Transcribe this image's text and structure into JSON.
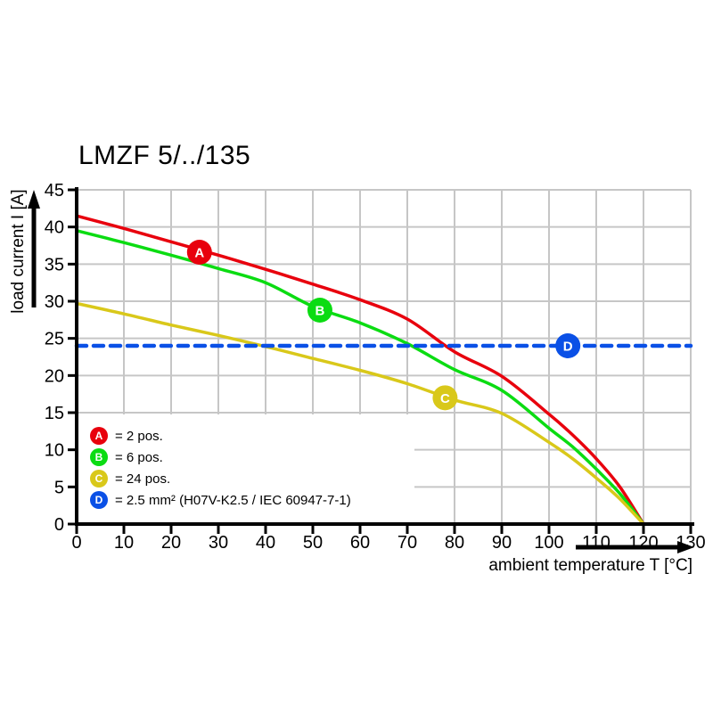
{
  "title": "LMZF 5/../135",
  "colors": {
    "red": "#e8000d",
    "green": "#0bdc12",
    "yellow": "#d9c81a",
    "blue": "#0a50e6",
    "grid": "#c6c6c6",
    "axis": "#000000",
    "background": "#ffffff",
    "marker_letter": "#ffffff"
  },
  "chart_data": {
    "type": "line",
    "title": "LMZF 5/../135",
    "xlabel": "ambient temperature T [°C]",
    "ylabel": "load current I [A]",
    "xlim": [
      0,
      130
    ],
    "ylim": [
      0,
      45
    ],
    "x_ticks": [
      0,
      10,
      20,
      30,
      40,
      50,
      60,
      70,
      80,
      90,
      100,
      110,
      120,
      130
    ],
    "y_ticks": [
      0,
      5,
      10,
      15,
      20,
      25,
      30,
      35,
      40,
      45
    ],
    "grid": true,
    "legend_position": "inside bottom-left",
    "series": [
      {
        "id": "A",
        "label": "= 2 pos.",
        "color": "#e8000d",
        "style": "solid",
        "marker_at": [
          26,
          36.6
        ],
        "points": [
          [
            0,
            41.5
          ],
          [
            10,
            39.8
          ],
          [
            20,
            38.0
          ],
          [
            30,
            36.2
          ],
          [
            40,
            34.3
          ],
          [
            50,
            32.3
          ],
          [
            60,
            30.2
          ],
          [
            70,
            27.6
          ],
          [
            80,
            23.2
          ],
          [
            90,
            19.9
          ],
          [
            100,
            14.8
          ],
          [
            105,
            12.0
          ],
          [
            110,
            8.8
          ],
          [
            115,
            5.0
          ],
          [
            120,
            0
          ]
        ]
      },
      {
        "id": "B",
        "label": "= 6 pos.",
        "color": "#0bdc12",
        "style": "solid",
        "marker_at": [
          51.5,
          28.8
        ],
        "points": [
          [
            0,
            39.5
          ],
          [
            10,
            37.9
          ],
          [
            20,
            36.2
          ],
          [
            30,
            34.4
          ],
          [
            40,
            32.5
          ],
          [
            50,
            29.3
          ],
          [
            60,
            27.1
          ],
          [
            70,
            24.3
          ],
          [
            80,
            20.8
          ],
          [
            90,
            18.0
          ],
          [
            100,
            12.9
          ],
          [
            105,
            10.4
          ],
          [
            110,
            7.4
          ],
          [
            115,
            4.1
          ],
          [
            120,
            0
          ]
        ]
      },
      {
        "id": "C",
        "label": "= 24 pos.",
        "color": "#d9c81a",
        "style": "solid",
        "marker_at": [
          78,
          17
        ],
        "points": [
          [
            0,
            29.7
          ],
          [
            10,
            28.3
          ],
          [
            20,
            26.8
          ],
          [
            30,
            25.4
          ],
          [
            40,
            23.9
          ],
          [
            50,
            22.3
          ],
          [
            60,
            20.7
          ],
          [
            70,
            18.9
          ],
          [
            80,
            16.7
          ],
          [
            90,
            14.9
          ],
          [
            100,
            11.0
          ],
          [
            105,
            8.8
          ],
          [
            110,
            6.2
          ],
          [
            115,
            3.4
          ],
          [
            120,
            0
          ]
        ]
      },
      {
        "id": "D",
        "label": "= 2.5 mm² (H07V-K2.5 / IEC 60947-7-1)",
        "color": "#0a50e6",
        "style": "dashed",
        "marker_at": [
          104,
          24
        ],
        "points": [
          [
            0,
            24
          ],
          [
            130,
            24
          ]
        ]
      }
    ]
  }
}
